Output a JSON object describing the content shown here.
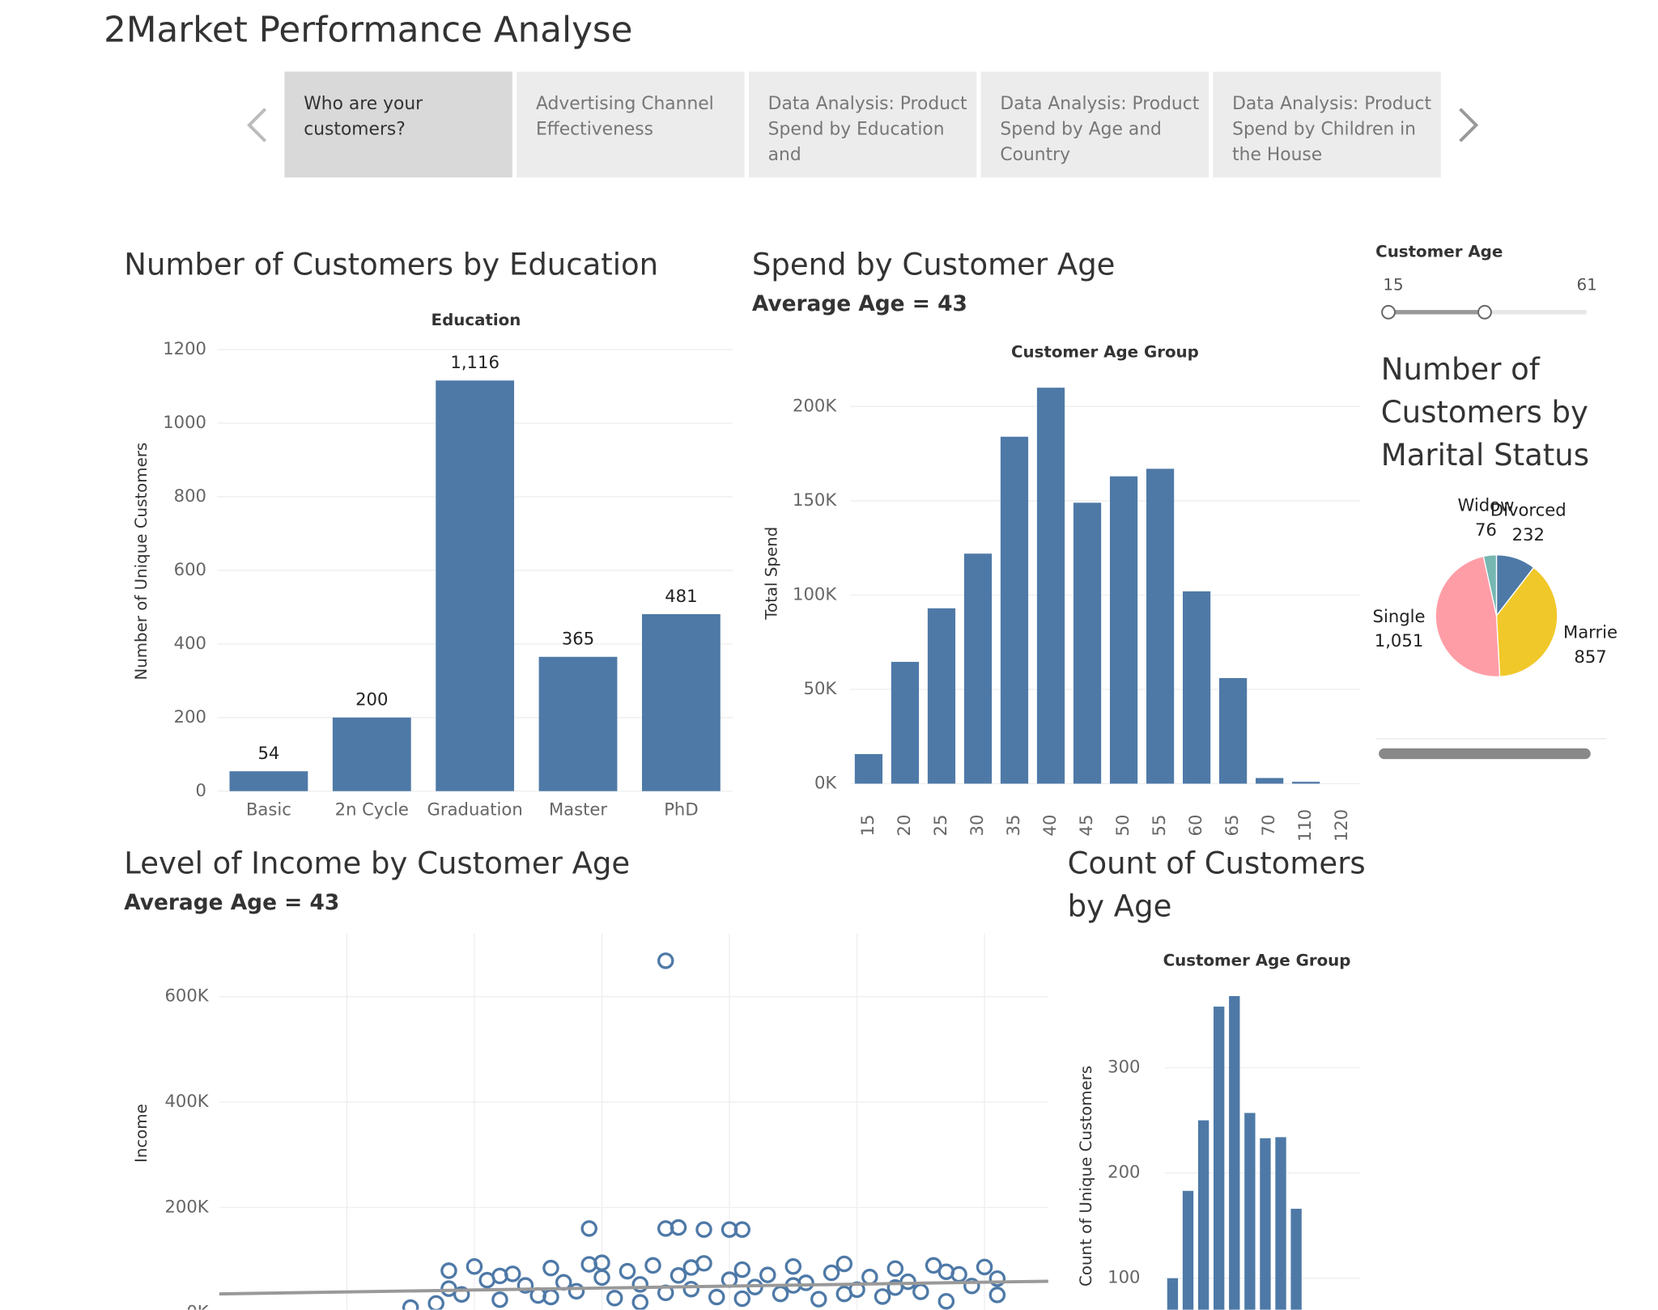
{
  "dashboard": {
    "title": "2Market Performance Analyse",
    "tabs": [
      "Who are your customers?",
      "Advertising Channel Effectiveness",
      "Data Analysis: Product Spend by Education and",
      "Data Analysis: Product Spend by Age and Country",
      "Data Analysis: Product Spend by Children in the House"
    ],
    "filter": {
      "label": "Customer Age",
      "min": 15,
      "max": 61
    }
  },
  "chart_data": [
    {
      "type": "bar",
      "title": "Number of Customers by Education",
      "x_label": "Education",
      "y_label": "Number of Unique Customers",
      "categories": [
        "Basic",
        "2n Cycle",
        "Graduation",
        "Master",
        "PhD"
      ],
      "values": [
        54,
        200,
        1116,
        365,
        481
      ],
      "value_labels": [
        "54",
        "200",
        "1,116",
        "365",
        "481"
      ],
      "color": "#4e79a7",
      "ylim": [
        0,
        1200
      ],
      "yticks": [
        0,
        200,
        400,
        600,
        800,
        1000,
        1200
      ],
      "grid": true
    },
    {
      "type": "bar",
      "title": "Spend by Customer Age",
      "subtitle": "Average Age = 43",
      "x_label": "Customer Age Group",
      "y_label": "Total Spend",
      "categories": [
        "15",
        "20",
        "25",
        "30",
        "35",
        "40",
        "45",
        "50",
        "55",
        "60",
        "65",
        "70",
        "110",
        "120"
      ],
      "values": [
        15700,
        64600,
        93000,
        122000,
        184000,
        210000,
        149000,
        163000,
        167000,
        102000,
        56000,
        3000,
        1000,
        null
      ],
      "color": "#4e79a7",
      "ylim": [
        0,
        220000
      ],
      "yticks": [
        {
          "value": 0,
          "label": "0K"
        },
        {
          "value": 50000,
          "label": "50K"
        },
        {
          "value": 100000,
          "label": "100K"
        },
        {
          "value": 150000,
          "label": "150K"
        },
        {
          "value": 200000,
          "label": "200K"
        }
      ],
      "grid": true
    },
    {
      "type": "pie",
      "title": "Number of Customers by Marital Status",
      "categories": [
        "Divorced",
        "Marrie",
        "Single",
        "Widow"
      ],
      "values": [
        232,
        857,
        1051,
        76
      ],
      "value_labels": [
        "232",
        "857",
        "1,051",
        "76"
      ],
      "colors": [
        "#4e79a7",
        "#f1c82a",
        "#ff9da7",
        "#76b7b2"
      ]
    },
    {
      "type": "scatter",
      "title": "Level of Income by Customer Age",
      "subtitle": "Average Age = 43",
      "y_label": "Income",
      "x": [
        15,
        17,
        18,
        19,
        20,
        21,
        22,
        23,
        24,
        25,
        26,
        27,
        28,
        29,
        29,
        30,
        31,
        32,
        33,
        34,
        35,
        35,
        35,
        36,
        36,
        37,
        38,
        38,
        39,
        40,
        40,
        41,
        41,
        42,
        43,
        44,
        45,
        46,
        47,
        48,
        49,
        50,
        51,
        52,
        53,
        54,
        55,
        56,
        57,
        58,
        59,
        60,
        61,
        18,
        22,
        26,
        30,
        33,
        37,
        41,
        45,
        49,
        53,
        57,
        61
      ],
      "y": [
        10000,
        18000,
        80000,
        35000,
        88000,
        62000,
        25000,
        74000,
        52000,
        33000,
        85000,
        58000,
        41000,
        92000,
        160000,
        67000,
        28000,
        79000,
        54000,
        90000,
        668000,
        160000,
        38000,
        162000,
        71000,
        45000,
        158000,
        94000,
        30000,
        158000,
        63000,
        158000,
        82000,
        49000,
        72000,
        36000,
        88000,
        57000,
        26000,
        76000,
        93000,
        44000,
        68000,
        31000,
        84000,
        59000,
        40000,
        90000,
        22000,
        73000,
        51000,
        87000,
        34000,
        46000,
        70000,
        30000,
        95000,
        20000,
        86000,
        27000,
        52000,
        36000,
        48000,
        78000,
        65000
      ],
      "color": "#4e79a7",
      "trend_line": {
        "x": [
          0,
          65
        ],
        "y": [
          36000,
          60000
        ]
      },
      "trend_color": "#999999",
      "xlim": [
        0,
        65
      ],
      "xgrid": [
        10,
        20,
        30,
        40,
        50,
        60
      ],
      "ylim": [
        0,
        720000
      ],
      "yticks": [
        {
          "value": 0,
          "label": "0K"
        },
        {
          "value": 200000,
          "label": "200K"
        },
        {
          "value": 400000,
          "label": "400K"
        },
        {
          "value": 600000,
          "label": "600K"
        }
      ],
      "grid": true
    },
    {
      "type": "bar",
      "title": "Count of Customers by Age",
      "x_label": "Customer Age Group",
      "y_label": "Count of Unique Customers",
      "categories": [
        null,
        null,
        null,
        null,
        null,
        null,
        null,
        null,
        null
      ],
      "values": [
        100,
        183,
        250,
        358,
        368,
        257,
        233,
        234,
        166
      ],
      "color": "#4e79a7",
      "ylim": [
        60,
        388
      ],
      "yticks": [
        100,
        200,
        300
      ],
      "grid": true
    }
  ]
}
